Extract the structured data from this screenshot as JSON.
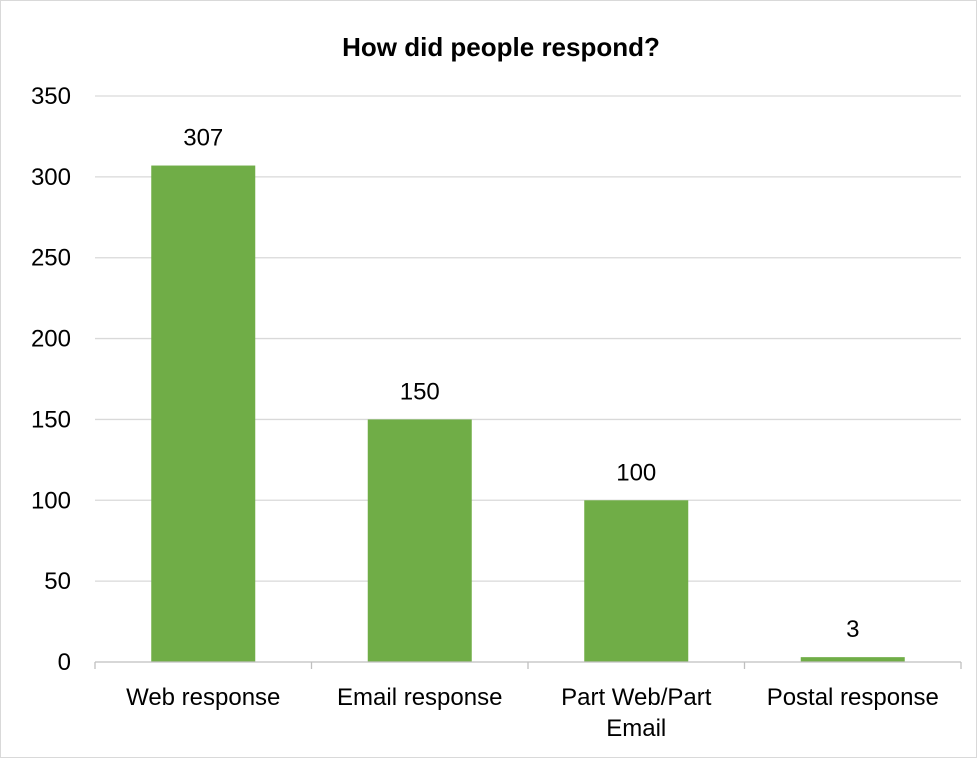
{
  "chart_data": {
    "type": "bar",
    "title": "How did people respond?",
    "categories": [
      "Web response",
      "Email response",
      "Part Web/Part Email",
      "Postal response"
    ],
    "category_lines": [
      [
        "Web response"
      ],
      [
        "Email response"
      ],
      [
        "Part Web/Part",
        "Email"
      ],
      [
        "Postal response"
      ]
    ],
    "values": [
      307,
      150,
      100,
      3
    ],
    "data_labels": [
      "307",
      "150",
      "100",
      "3"
    ],
    "xlabel": "",
    "ylabel": "",
    "ylim": [
      0,
      350
    ],
    "yticks": [
      0,
      50,
      100,
      150,
      200,
      250,
      300,
      350
    ],
    "grid": true,
    "legend": "none",
    "colors": {
      "bar": "#70ad47",
      "grid": "#d9d9d9",
      "axis": "#bfbfbf"
    }
  }
}
